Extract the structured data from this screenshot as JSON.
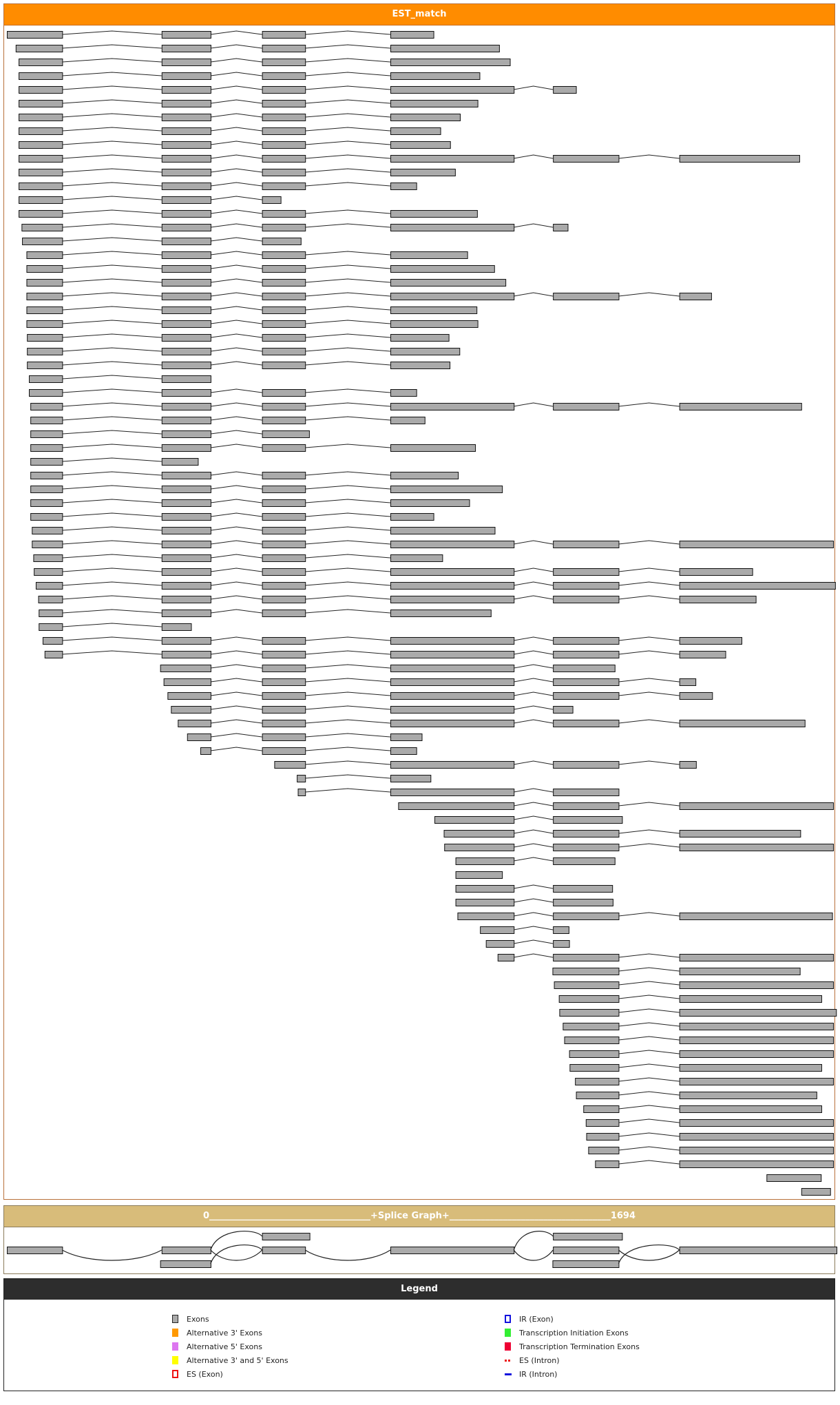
{
  "est_panel": {
    "title": "EST_match",
    "exon_color": "#aaaaaa",
    "rows": [
      [
        [
          0,
          113
        ],
        [
          316,
          416
        ],
        [
          521,
          609
        ],
        [
          783,
          871
        ]
      ],
      [
        [
          18,
          113
        ],
        [
          316,
          416
        ],
        [
          521,
          609
        ],
        [
          783,
          1005
        ]
      ],
      [
        [
          24,
          113
        ],
        [
          316,
          416
        ],
        [
          521,
          609
        ],
        [
          783,
          1027
        ]
      ],
      [
        [
          24,
          113
        ],
        [
          316,
          416
        ],
        [
          521,
          609
        ],
        [
          783,
          965
        ]
      ],
      [
        [
          24,
          113
        ],
        [
          316,
          416
        ],
        [
          521,
          609
        ],
        [
          783,
          1035
        ],
        [
          1115,
          1162
        ]
      ],
      [
        [
          24,
          113
        ],
        [
          316,
          416
        ],
        [
          521,
          609
        ],
        [
          783,
          961
        ]
      ],
      [
        [
          24,
          113
        ],
        [
          316,
          416
        ],
        [
          521,
          609
        ],
        [
          783,
          925
        ]
      ],
      [
        [
          24,
          113
        ],
        [
          316,
          416
        ],
        [
          521,
          609
        ],
        [
          783,
          885
        ]
      ],
      [
        [
          24,
          113
        ],
        [
          316,
          416
        ],
        [
          521,
          609
        ],
        [
          783,
          905
        ]
      ],
      [
        [
          24,
          113
        ],
        [
          316,
          416
        ],
        [
          521,
          609
        ],
        [
          783,
          1035
        ],
        [
          1115,
          1249
        ],
        [
          1373,
          1618
        ]
      ],
      [
        [
          24,
          113
        ],
        [
          316,
          416
        ],
        [
          521,
          609
        ],
        [
          783,
          915
        ]
      ],
      [
        [
          24,
          113
        ],
        [
          316,
          416
        ],
        [
          521,
          609
        ],
        [
          783,
          836
        ]
      ],
      [
        [
          24,
          113
        ],
        [
          316,
          416
        ],
        [
          521,
          559
        ]
      ],
      [
        [
          24,
          113
        ],
        [
          316,
          416
        ],
        [
          521,
          609
        ],
        [
          783,
          960
        ]
      ],
      [
        [
          30,
          113
        ],
        [
          316,
          416
        ],
        [
          521,
          609
        ],
        [
          783,
          1035
        ],
        [
          1115,
          1145
        ]
      ],
      [
        [
          31,
          113
        ],
        [
          316,
          416
        ],
        [
          521,
          600
        ]
      ],
      [
        [
          40,
          113
        ],
        [
          316,
          416
        ],
        [
          521,
          609
        ],
        [
          783,
          940
        ]
      ],
      [
        [
          40,
          113
        ],
        [
          316,
          416
        ],
        [
          521,
          609
        ],
        [
          783,
          995
        ]
      ],
      [
        [
          40,
          113
        ],
        [
          316,
          416
        ],
        [
          521,
          609
        ],
        [
          783,
          1018
        ]
      ],
      [
        [
          40,
          113
        ],
        [
          316,
          416
        ],
        [
          521,
          609
        ],
        [
          783,
          1035
        ],
        [
          1115,
          1249
        ],
        [
          1373,
          1438
        ]
      ],
      [
        [
          40,
          113
        ],
        [
          316,
          416
        ],
        [
          521,
          609
        ],
        [
          783,
          959
        ]
      ],
      [
        [
          40,
          113
        ],
        [
          316,
          416
        ],
        [
          521,
          609
        ],
        [
          783,
          961
        ]
      ],
      [
        [
          41,
          113
        ],
        [
          316,
          416
        ],
        [
          521,
          609
        ],
        [
          783,
          902
        ]
      ],
      [
        [
          41,
          113
        ],
        [
          316,
          416
        ],
        [
          521,
          609
        ],
        [
          783,
          924
        ]
      ],
      [
        [
          41,
          113
        ],
        [
          316,
          416
        ],
        [
          521,
          609
        ],
        [
          783,
          904
        ]
      ],
      [
        [
          45,
          113
        ],
        [
          316,
          416
        ]
      ],
      [
        [
          45,
          113
        ],
        [
          316,
          416
        ],
        [
          521,
          609
        ],
        [
          783,
          836
        ]
      ],
      [
        [
          48,
          113
        ],
        [
          316,
          416
        ],
        [
          521,
          609
        ],
        [
          783,
          1035
        ],
        [
          1115,
          1249
        ],
        [
          1373,
          1622
        ]
      ],
      [
        [
          48,
          113
        ],
        [
          316,
          416
        ],
        [
          521,
          609
        ],
        [
          783,
          853
        ]
      ],
      [
        [
          48,
          113
        ],
        [
          316,
          416
        ],
        [
          521,
          617
        ]
      ],
      [
        [
          48,
          113
        ],
        [
          316,
          416
        ],
        [
          521,
          609
        ],
        [
          783,
          956
        ]
      ],
      [
        [
          48,
          113
        ],
        [
          316,
          390
        ]
      ],
      [
        [
          48,
          113
        ],
        [
          316,
          416
        ],
        [
          521,
          609
        ],
        [
          783,
          921
        ]
      ],
      [
        [
          48,
          113
        ],
        [
          316,
          416
        ],
        [
          521,
          609
        ],
        [
          783,
          1011
        ]
      ],
      [
        [
          48,
          113
        ],
        [
          316,
          416
        ],
        [
          521,
          609
        ],
        [
          783,
          944
        ]
      ],
      [
        [
          48,
          113
        ],
        [
          316,
          416
        ],
        [
          521,
          609
        ],
        [
          783,
          871
        ]
      ],
      [
        [
          51,
          113
        ],
        [
          316,
          416
        ],
        [
          521,
          609
        ],
        [
          783,
          996
        ]
      ],
      [
        [
          51,
          113
        ],
        [
          316,
          416
        ],
        [
          521,
          609
        ],
        [
          783,
          1035
        ],
        [
          1115,
          1249
        ],
        [
          1373,
          1687
        ]
      ],
      [
        [
          54,
          113
        ],
        [
          316,
          416
        ],
        [
          521,
          609
        ],
        [
          783,
          889
        ]
      ],
      [
        [
          55,
          113
        ],
        [
          316,
          416
        ],
        [
          521,
          609
        ],
        [
          783,
          1035
        ],
        [
          1115,
          1249
        ],
        [
          1373,
          1522
        ]
      ],
      [
        [
          59,
          113
        ],
        [
          316,
          416
        ],
        [
          521,
          609
        ],
        [
          783,
          1035
        ],
        [
          1115,
          1249
        ],
        [
          1373,
          1691
        ]
      ],
      [
        [
          64,
          113
        ],
        [
          316,
          416
        ],
        [
          521,
          609
        ],
        [
          783,
          1035
        ],
        [
          1115,
          1249
        ],
        [
          1373,
          1529
        ]
      ],
      [
        [
          65,
          113
        ],
        [
          316,
          416
        ],
        [
          521,
          609
        ],
        [
          783,
          988
        ]
      ],
      [
        [
          65,
          113
        ],
        [
          316,
          376
        ]
      ],
      [
        [
          73,
          113
        ],
        [
          316,
          416
        ],
        [
          521,
          609
        ],
        [
          783,
          1035
        ],
        [
          1115,
          1249
        ],
        [
          1373,
          1500
        ]
      ],
      [
        [
          77,
          113
        ],
        [
          316,
          416
        ],
        [
          521,
          609
        ],
        [
          783,
          1035
        ],
        [
          1115,
          1249
        ],
        [
          1373,
          1467
        ]
      ],
      [
        [
          313,
          416
        ],
        [
          521,
          609
        ],
        [
          783,
          1035
        ],
        [
          1115,
          1241
        ]
      ],
      [
        [
          320,
          416
        ],
        [
          521,
          609
        ],
        [
          783,
          1035
        ],
        [
          1115,
          1249
        ],
        [
          1373,
          1406
        ]
      ],
      [
        [
          328,
          416
        ],
        [
          521,
          609
        ],
        [
          783,
          1035
        ],
        [
          1115,
          1249
        ],
        [
          1373,
          1440
        ]
      ],
      [
        [
          335,
          416
        ],
        [
          521,
          609
        ],
        [
          783,
          1035
        ],
        [
          1115,
          1155
        ]
      ],
      [
        [
          349,
          416
        ],
        [
          521,
          609
        ],
        [
          783,
          1035
        ],
        [
          1115,
          1249
        ],
        [
          1373,
          1629
        ]
      ],
      [
        [
          368,
          416
        ],
        [
          521,
          609
        ],
        [
          783,
          847
        ]
      ],
      [
        [
          395,
          416
        ],
        [
          521,
          609
        ],
        [
          783,
          836
        ]
      ],
      [
        [
          546,
          609
        ],
        [
          783,
          1035
        ],
        [
          1115,
          1249
        ],
        [
          1373,
          1407
        ]
      ],
      [
        [
          592,
          609
        ],
        [
          783,
          865
        ]
      ],
      [
        [
          594,
          609
        ],
        [
          783,
          1035
        ],
        [
          1115,
          1249
        ]
      ],
      [
        [
          799,
          1035
        ],
        [
          1115,
          1249
        ],
        [
          1373,
          1687
        ]
      ],
      [
        [
          873,
          1035
        ],
        [
          1115,
          1256
        ]
      ],
      [
        [
          892,
          1035
        ],
        [
          1115,
          1249
        ],
        [
          1373,
          1620
        ]
      ],
      [
        [
          893,
          1035
        ],
        [
          1115,
          1249
        ],
        [
          1373,
          1687
        ]
      ],
      [
        [
          916,
          1035
        ],
        [
          1115,
          1241
        ]
      ],
      [
        [
          916,
          1011
        ]
      ],
      [
        [
          916,
          1035
        ],
        [
          1115,
          1236
        ]
      ],
      [
        [
          916,
          1035
        ],
        [
          1115,
          1237
        ]
      ],
      [
        [
          920,
          1035
        ],
        [
          1115,
          1249
        ],
        [
          1373,
          1685
        ]
      ],
      [
        [
          966,
          1035
        ],
        [
          1115,
          1147
        ]
      ],
      [
        [
          978,
          1035
        ],
        [
          1115,
          1148
        ]
      ],
      [
        [
          1002,
          1035
        ],
        [
          1115,
          1249
        ],
        [
          1373,
          1687
        ]
      ],
      [
        [
          1114,
          1249
        ],
        [
          1373,
          1619
        ]
      ],
      [
        [
          1117,
          1249
        ],
        [
          1373,
          1687
        ]
      ],
      [
        [
          1127,
          1249
        ],
        [
          1373,
          1663
        ]
      ],
      [
        [
          1128,
          1249
        ],
        [
          1373,
          1693
        ]
      ],
      [
        [
          1135,
          1249
        ],
        [
          1373,
          1687
        ]
      ],
      [
        [
          1138,
          1249
        ],
        [
          1373,
          1687
        ]
      ],
      [
        [
          1148,
          1249
        ],
        [
          1373,
          1687
        ]
      ],
      [
        [
          1149,
          1249
        ],
        [
          1373,
          1663
        ]
      ],
      [
        [
          1160,
          1249
        ],
        [
          1373,
          1687
        ]
      ],
      [
        [
          1162,
          1249
        ],
        [
          1373,
          1653
        ]
      ],
      [
        [
          1177,
          1249
        ],
        [
          1373,
          1663
        ]
      ],
      [
        [
          1182,
          1249
        ],
        [
          1373,
          1687
        ]
      ],
      [
        [
          1183,
          1249
        ],
        [
          1373,
          1687
        ]
      ],
      [
        [
          1187,
          1249
        ],
        [
          1373,
          1687
        ]
      ],
      [
        [
          1201,
          1249
        ],
        [
          1373,
          1687
        ]
      ],
      [
        [
          1551,
          1662
        ]
      ],
      [
        [
          1622,
          1681
        ]
      ]
    ]
  },
  "splice_graph": {
    "start_label": "0",
    "title": "+Splice Graph+",
    "end_label": "1694",
    "dashes": "____________________________________",
    "length": 1694,
    "nodes": [
      {
        "id": "e1",
        "track": "middle",
        "range": [
          0,
          113
        ]
      },
      {
        "id": "e2",
        "track": "middle",
        "range": [
          316,
          416
        ]
      },
      {
        "id": "e2b",
        "track": "bottom",
        "range": [
          313,
          416
        ]
      },
      {
        "id": "e3t",
        "track": "top",
        "range": [
          521,
          618
        ]
      },
      {
        "id": "e3",
        "track": "middle",
        "range": [
          521,
          609
        ]
      },
      {
        "id": "e4",
        "track": "middle",
        "range": [
          783,
          1035
        ]
      },
      {
        "id": "e5t",
        "track": "top",
        "range": [
          1115,
          1256
        ]
      },
      {
        "id": "e5",
        "track": "middle",
        "range": [
          1115,
          1249
        ]
      },
      {
        "id": "e5b",
        "track": "bottom",
        "range": [
          1114,
          1249
        ]
      },
      {
        "id": "e6",
        "track": "middle",
        "range": [
          1373,
          1694
        ]
      }
    ],
    "edges": [
      [
        "e1",
        "e2"
      ],
      [
        "e2",
        "e3t"
      ],
      [
        "e2",
        "e3"
      ],
      [
        "e2b",
        "e3"
      ],
      [
        "e3",
        "e4"
      ],
      [
        "e4",
        "e5t"
      ],
      [
        "e4",
        "e5"
      ],
      [
        "e5",
        "e6"
      ],
      [
        "e5b",
        "e6"
      ]
    ]
  },
  "legend": {
    "title": "Legend",
    "left": [
      {
        "label": "Exons",
        "style": "box",
        "fill": "#aaaaaa",
        "border": "#222222"
      },
      {
        "label": "Alternative 3' Exons",
        "style": "box",
        "fill": "#ff9900",
        "border": "#ff9900"
      },
      {
        "label": "Alternative 5' Exons",
        "style": "box",
        "fill": "#dd77f0",
        "border": "#dd77f0"
      },
      {
        "label": "Alternative 3' and 5' Exons",
        "style": "box",
        "fill": "#ffff00",
        "border": "#ffff00"
      },
      {
        "label": "ES (Exon)",
        "style": "dashed-box",
        "fill": "#ffffff",
        "border": "#ee1111"
      }
    ],
    "right": [
      {
        "label": "IR (Exon)",
        "style": "outline-box",
        "fill": "#ffffff",
        "border": "#1111dd"
      },
      {
        "label": "Transcription Initiation Exons",
        "style": "box",
        "fill": "#33ee33",
        "border": "#33ee33"
      },
      {
        "label": "Transcription Termination Exons",
        "style": "box",
        "fill": "#ee0033",
        "border": "#ee0033"
      },
      {
        "label": "ES (Intron)",
        "style": "dashed-line",
        "fill": "#ee1111"
      },
      {
        "label": "IR (Intron)",
        "style": "line",
        "fill": "#1111dd"
      }
    ]
  }
}
